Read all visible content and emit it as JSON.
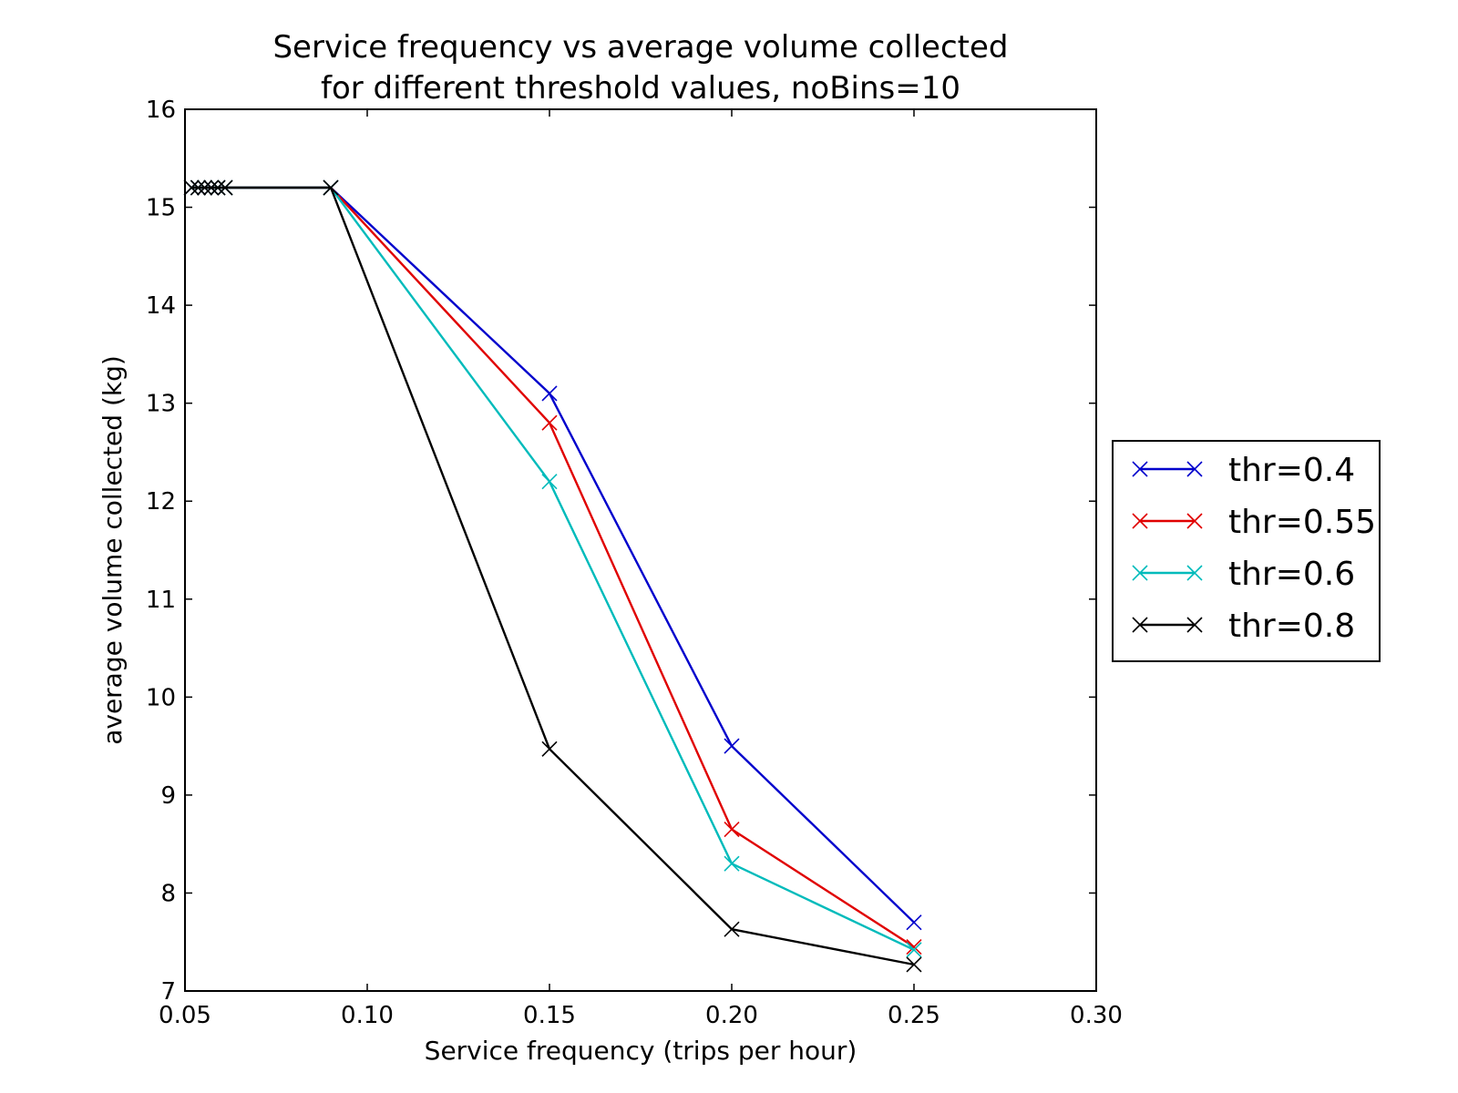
{
  "chart_data": {
    "type": "line",
    "title": [
      "Service frequency vs average volume collected",
      "for different threshold values, noBins=10"
    ],
    "xlabel": "Service frequency (trips per hour)",
    "ylabel": "average volume collected (kg)",
    "xlim": [
      0.05,
      0.3
    ],
    "ylim": [
      7,
      16
    ],
    "xticks": [
      0.05,
      0.1,
      0.15,
      0.2,
      0.25,
      0.3
    ],
    "xtick_labels": [
      "0.05",
      "0.10",
      "0.15",
      "0.20",
      "0.25",
      "0.30"
    ],
    "yticks": [
      7,
      8,
      9,
      10,
      11,
      12,
      13,
      14,
      15,
      16
    ],
    "ytick_labels": [
      "7",
      "8",
      "9",
      "10",
      "11",
      "12",
      "13",
      "14",
      "15",
      "16"
    ],
    "grid": false,
    "legend_position": "right",
    "marker": "x",
    "series": [
      {
        "name": "thr=0.4",
        "color": "#0000cc",
        "x": [
          0.0518,
          0.0536,
          0.0554,
          0.0572,
          0.059,
          0.061,
          0.09,
          0.15,
          0.2,
          0.25
        ],
        "y": [
          15.2,
          15.2,
          15.2,
          15.2,
          15.2,
          15.2,
          15.2,
          13.1,
          9.5,
          7.7
        ]
      },
      {
        "name": "thr=0.55",
        "color": "#e00000",
        "x": [
          0.0518,
          0.0536,
          0.0554,
          0.0572,
          0.059,
          0.061,
          0.09,
          0.15,
          0.2,
          0.25
        ],
        "y": [
          15.2,
          15.2,
          15.2,
          15.2,
          15.2,
          15.2,
          15.2,
          12.8,
          8.65,
          7.45
        ]
      },
      {
        "name": "thr=0.6",
        "color": "#00bbbb",
        "x": [
          0.0518,
          0.0536,
          0.0554,
          0.0572,
          0.059,
          0.061,
          0.09,
          0.15,
          0.2,
          0.25
        ],
        "y": [
          15.2,
          15.2,
          15.2,
          15.2,
          15.2,
          15.2,
          15.2,
          12.2,
          8.3,
          7.42
        ]
      },
      {
        "name": "thr=0.8",
        "color": "#000000",
        "x": [
          0.0518,
          0.0536,
          0.0554,
          0.0572,
          0.059,
          0.061,
          0.09,
          0.15,
          0.2,
          0.25
        ],
        "y": [
          15.2,
          15.2,
          15.2,
          15.2,
          15.2,
          15.2,
          15.2,
          9.47,
          7.63,
          7.27
        ]
      }
    ]
  }
}
